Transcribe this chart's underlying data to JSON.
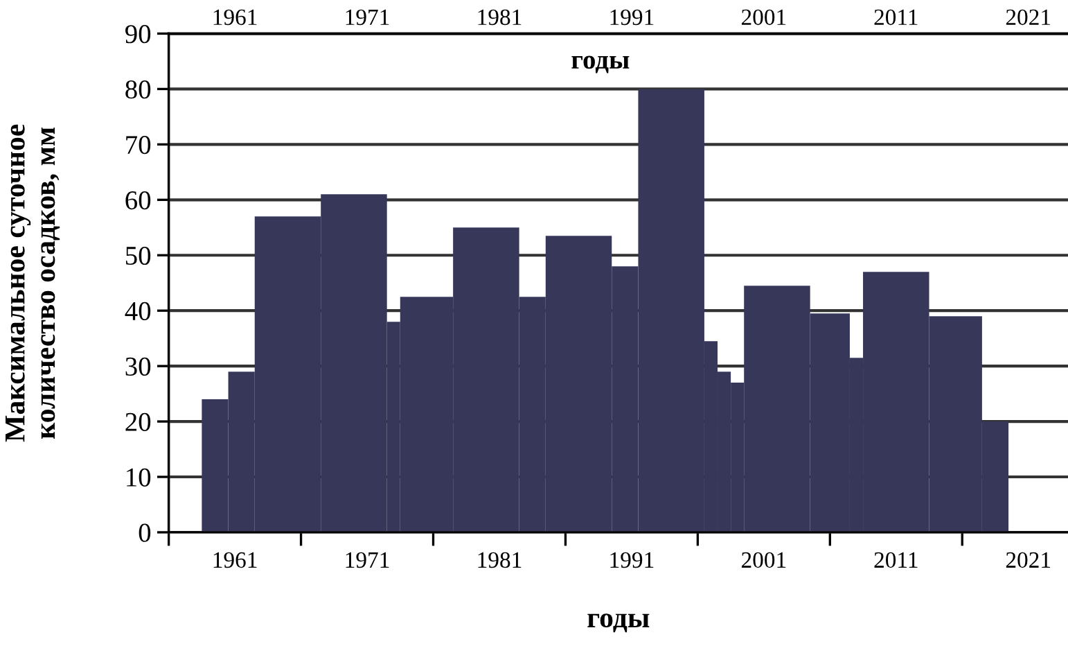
{
  "chart_data": {
    "type": "histogram",
    "ylabel": "Максимальное суточное\nколичество осадков, мм",
    "xlabel": "годы",
    "x2label": "годы",
    "bins": [
      1958.5,
      1960.5,
      1962.5,
      1967.5,
      1972.5,
      1973.5,
      1977.5,
      1982.5,
      1984.5,
      1989.5,
      1991.5,
      1996.5,
      1997.5,
      1998.5,
      1999.5,
      2004.5,
      2007.5,
      2008.5,
      2013.5,
      2017.5,
      2019.5
    ],
    "values": [
      24,
      29,
      57,
      61,
      38,
      42.5,
      55,
      42.5,
      53.5,
      48,
      80,
      34.5,
      29,
      27,
      44.5,
      39.5,
      31.5,
      47,
      39,
      20
    ],
    "color": "#363759",
    "xlim": [
      1956,
      2024
    ],
    "xticks": [
      {
        "value": 1956,
        "label": null
      },
      {
        "value": 1961,
        "label": "1961"
      },
      {
        "value": 1966,
        "label": null
      },
      {
        "value": 1971,
        "label": "1971"
      },
      {
        "value": 1976,
        "label": null
      },
      {
        "value": 1981,
        "label": "1981"
      },
      {
        "value": 1986,
        "label": null
      },
      {
        "value": 1991,
        "label": "1991"
      },
      {
        "value": 1996,
        "label": null
      },
      {
        "value": 2001,
        "label": "2001"
      },
      {
        "value": 2006,
        "label": null
      },
      {
        "value": 2011,
        "label": "2011"
      },
      {
        "value": 2016,
        "label": null
      },
      {
        "value": 2021,
        "label": "2021"
      }
    ],
    "x2lim": [
      1956,
      2024
    ],
    "x2ticks": [
      {
        "value": 1961,
        "label": "1961"
      },
      {
        "value": 1971,
        "label": "1971"
      },
      {
        "value": 1981,
        "label": "1981"
      },
      {
        "value": 1991,
        "label": "1991"
      },
      {
        "value": 2001,
        "label": "2001"
      },
      {
        "value": 2011,
        "label": "2011"
      },
      {
        "value": 2021,
        "label": "2021"
      }
    ],
    "ylim": [
      0,
      90
    ],
    "yticks": [
      0,
      10,
      20,
      30,
      40,
      50,
      60,
      70,
      80,
      90
    ],
    "grid": "y"
  }
}
